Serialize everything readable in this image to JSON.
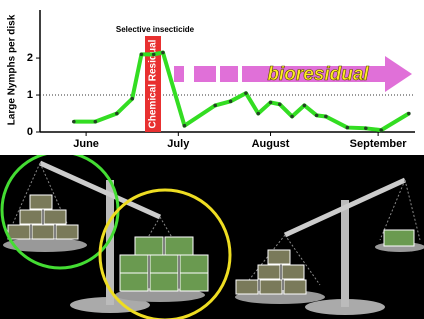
{
  "chart_data": {
    "type": "line",
    "y_label": "Large Nymphs per disk",
    "annotations": {
      "insecticide": "Selective insecticide",
      "residual": "Chemical Residual",
      "bioresidual": "bioresidual"
    },
    "x": [
      11,
      18,
      25,
      30,
      33,
      37,
      40,
      47,
      57,
      62,
      67,
      71,
      75,
      78,
      82,
      86,
      90,
      93,
      100,
      106,
      111,
      120
    ],
    "series": [
      {
        "color": "#33dd22",
        "values": [
          0.28,
          0.28,
          0.5,
          0.9,
          2.1,
          2.1,
          2.15,
          0.17,
          0.72,
          0.83,
          1.05,
          0.5,
          0.8,
          0.75,
          0.42,
          0.72,
          0.45,
          0.42,
          0.12,
          0.1,
          0.05,
          0.5
        ]
      }
    ],
    "xlim": [
      0,
      122
    ],
    "xticks": [
      {
        "value": 15,
        "label": "June"
      },
      {
        "value": 45,
        "label": "July"
      },
      {
        "value": 75,
        "label": "August"
      },
      {
        "value": 110,
        "label": "September"
      }
    ],
    "ylim": [
      0,
      3.3
    ],
    "yticks": [
      0,
      1,
      2
    ],
    "reference_line": 1
  }
}
